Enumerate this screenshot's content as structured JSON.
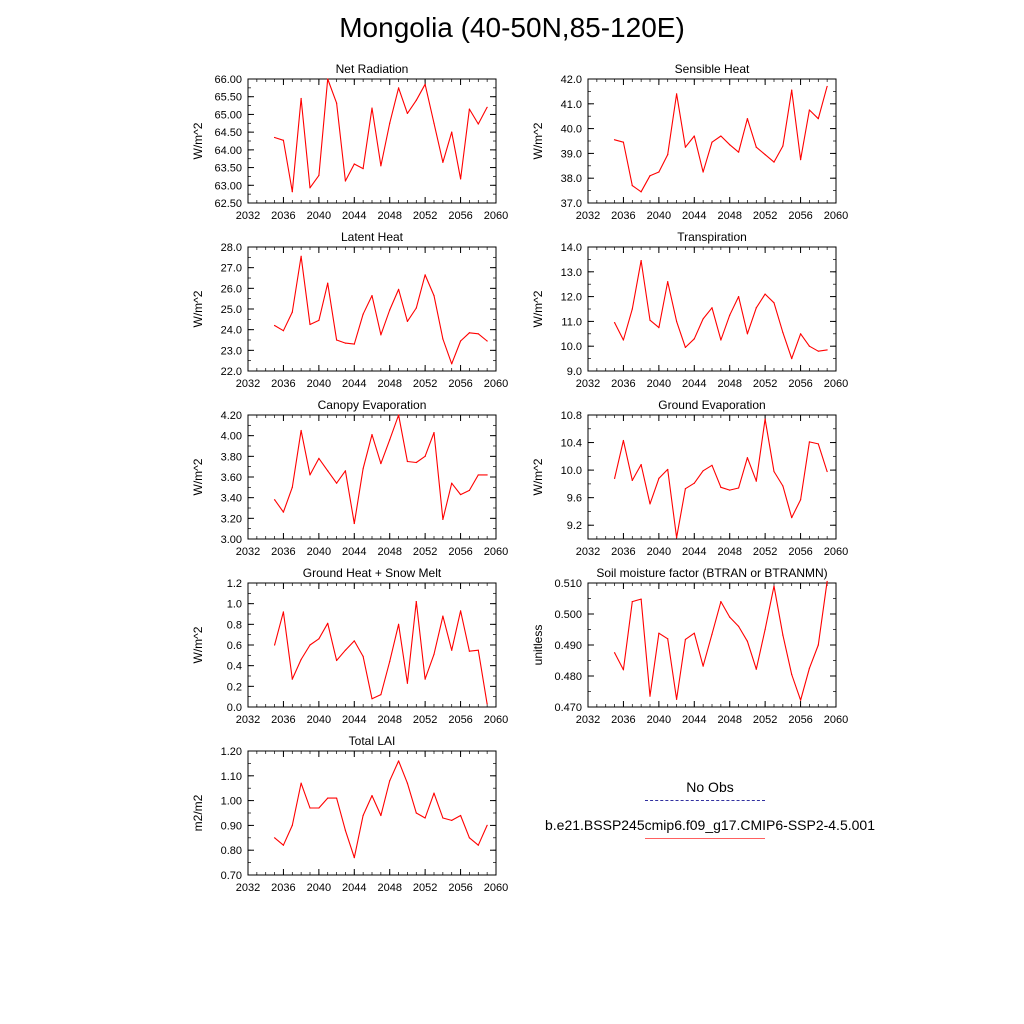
{
  "figure": {
    "title": "Mongolia (40-50N,85-120E)"
  },
  "legend": [
    {
      "label": "No Obs",
      "color": "#3030a0",
      "style": "dashed"
    },
    {
      "label": "b.e21.BSSP245cmip6.f09_g17.CMIP6-SSP2-4.5.001",
      "color": "#ff0000",
      "style": "solid"
    }
  ],
  "chart_data": [
    {
      "type": "line",
      "title": "Net Radiation",
      "ylabel": "W/m^2",
      "xlim": [
        2032,
        2060
      ],
      "ylim": [
        62.5,
        66.0
      ],
      "xticks": [
        2032,
        2036,
        2040,
        2044,
        2048,
        2052,
        2056,
        2060
      ],
      "yticks": [
        62.5,
        63.0,
        63.5,
        64.0,
        64.5,
        65.0,
        65.5,
        66.0
      ],
      "ytick_labels": [
        "62.50",
        "63.00",
        "63.50",
        "64.00",
        "64.50",
        "65.00",
        "65.50",
        "66.00"
      ],
      "grid": false,
      "color": "#ff0000",
      "x": [
        2035,
        2036,
        2037,
        2038,
        2039,
        2040,
        2041,
        2042,
        2043,
        2044,
        2045,
        2046,
        2047,
        2048,
        2049,
        2050,
        2051,
        2052,
        2053,
        2054,
        2055,
        2056,
        2057,
        2058,
        2059
      ],
      "values": [
        64.35,
        64.27,
        62.82,
        65.45,
        62.93,
        63.28,
        66.0,
        65.32,
        63.12,
        63.6,
        63.47,
        65.18,
        63.55,
        64.75,
        65.75,
        65.03,
        65.4,
        65.85,
        64.75,
        63.65,
        64.5,
        63.18,
        65.15,
        64.73,
        65.2
      ]
    },
    {
      "type": "line",
      "title": "Sensible Heat",
      "ylabel": "W/m^2",
      "xlim": [
        2032,
        2060
      ],
      "ylim": [
        37.0,
        42.0
      ],
      "xticks": [
        2032,
        2036,
        2040,
        2044,
        2048,
        2052,
        2056,
        2060
      ],
      "yticks": [
        37.0,
        38.0,
        39.0,
        40.0,
        41.0,
        42.0
      ],
      "ytick_labels": [
        "37.0",
        "38.0",
        "39.0",
        "40.0",
        "41.0",
        "42.0"
      ],
      "grid": false,
      "color": "#ff0000",
      "x": [
        2035,
        2036,
        2037,
        2038,
        2039,
        2040,
        2041,
        2042,
        2043,
        2044,
        2045,
        2046,
        2047,
        2048,
        2049,
        2050,
        2051,
        2052,
        2053,
        2054,
        2055,
        2056,
        2057,
        2058,
        2059
      ],
      "values": [
        39.55,
        39.45,
        37.7,
        37.45,
        38.1,
        38.25,
        38.95,
        41.4,
        39.25,
        39.7,
        38.25,
        39.45,
        39.7,
        39.35,
        39.05,
        40.4,
        39.25,
        38.95,
        38.65,
        39.3,
        41.55,
        38.75,
        40.75,
        40.4,
        41.7
      ]
    },
    {
      "type": "line",
      "title": "Latent Heat",
      "ylabel": "W/m^2",
      "xlim": [
        2032,
        2060
      ],
      "ylim": [
        22.0,
        28.0
      ],
      "xticks": [
        2032,
        2036,
        2040,
        2044,
        2048,
        2052,
        2056,
        2060
      ],
      "yticks": [
        22.0,
        23.0,
        24.0,
        25.0,
        26.0,
        27.0,
        28.0
      ],
      "ytick_labels": [
        "22.0",
        "23.0",
        "24.0",
        "25.0",
        "26.0",
        "27.0",
        "28.0"
      ],
      "grid": false,
      "color": "#ff0000",
      "x": [
        2035,
        2036,
        2037,
        2038,
        2039,
        2040,
        2041,
        2042,
        2043,
        2044,
        2045,
        2046,
        2047,
        2048,
        2049,
        2050,
        2051,
        2052,
        2053,
        2054,
        2055,
        2056,
        2057,
        2058,
        2059
      ],
      "values": [
        24.2,
        23.95,
        24.85,
        27.55,
        24.25,
        24.45,
        26.25,
        23.5,
        23.35,
        23.3,
        24.75,
        25.65,
        23.75,
        24.95,
        25.95,
        24.4,
        25.05,
        26.65,
        25.65,
        23.55,
        22.35,
        23.45,
        23.85,
        23.8,
        23.45
      ]
    },
    {
      "type": "line",
      "title": "Transpiration",
      "ylabel": "W/m^2",
      "xlim": [
        2032,
        2060
      ],
      "ylim": [
        9.0,
        14.0
      ],
      "xticks": [
        2032,
        2036,
        2040,
        2044,
        2048,
        2052,
        2056,
        2060
      ],
      "yticks": [
        9.0,
        10.0,
        11.0,
        12.0,
        13.0,
        14.0
      ],
      "ytick_labels": [
        "9.0",
        "10.0",
        "11.0",
        "12.0",
        "13.0",
        "14.0"
      ],
      "grid": false,
      "color": "#ff0000",
      "x": [
        2035,
        2036,
        2037,
        2038,
        2039,
        2040,
        2041,
        2042,
        2043,
        2044,
        2045,
        2046,
        2047,
        2048,
        2049,
        2050,
        2051,
        2052,
        2053,
        2054,
        2055,
        2056,
        2057,
        2058,
        2059
      ],
      "values": [
        10.95,
        10.25,
        11.5,
        13.45,
        11.05,
        10.75,
        12.6,
        11.0,
        9.95,
        10.3,
        11.1,
        11.55,
        10.25,
        11.25,
        12.0,
        10.5,
        11.55,
        12.1,
        11.75,
        10.55,
        9.5,
        10.5,
        10.0,
        9.8,
        9.85
      ]
    },
    {
      "type": "line",
      "title": "Canopy Evaporation",
      "ylabel": "W/m^2",
      "xlim": [
        2032,
        2060
      ],
      "ylim": [
        3.0,
        4.2
      ],
      "xticks": [
        2032,
        2036,
        2040,
        2044,
        2048,
        2052,
        2056,
        2060
      ],
      "yticks": [
        3.0,
        3.2,
        3.4,
        3.6,
        3.8,
        4.0,
        4.2
      ],
      "ytick_labels": [
        "3.00",
        "3.20",
        "3.40",
        "3.60",
        "3.80",
        "4.00",
        "4.20"
      ],
      "grid": false,
      "color": "#ff0000",
      "x": [
        2035,
        2036,
        2037,
        2038,
        2039,
        2040,
        2041,
        2042,
        2043,
        2044,
        2045,
        2046,
        2047,
        2048,
        2049,
        2050,
        2051,
        2052,
        2053,
        2054,
        2055,
        2056,
        2057,
        2058,
        2059
      ],
      "values": [
        3.38,
        3.26,
        3.5,
        4.05,
        3.62,
        3.78,
        3.66,
        3.54,
        3.66,
        3.15,
        3.68,
        4.01,
        3.73,
        3.96,
        4.2,
        3.75,
        3.74,
        3.8,
        4.03,
        3.19,
        3.54,
        3.43,
        3.47,
        3.62,
        3.62
      ]
    },
    {
      "type": "line",
      "title": "Ground Evaporation",
      "ylabel": "W/m^2",
      "xlim": [
        2032,
        2060
      ],
      "ylim": [
        9.0,
        10.8
      ],
      "xticks": [
        2032,
        2036,
        2040,
        2044,
        2048,
        2052,
        2056,
        2060
      ],
      "yticks": [
        9.2,
        9.6,
        10.0,
        10.4,
        10.8
      ],
      "ytick_labels": [
        "9.2",
        "9.6",
        "10.0",
        "10.4",
        "10.8"
      ],
      "grid": false,
      "color": "#ff0000",
      "x": [
        2035,
        2036,
        2037,
        2038,
        2039,
        2040,
        2041,
        2042,
        2043,
        2044,
        2045,
        2046,
        2047,
        2048,
        2049,
        2050,
        2051,
        2052,
        2053,
        2054,
        2055,
        2056,
        2057,
        2058,
        2059
      ],
      "values": [
        9.88,
        10.43,
        9.85,
        10.08,
        9.51,
        9.88,
        10.01,
        9.02,
        9.73,
        9.81,
        9.99,
        10.07,
        9.75,
        9.71,
        9.74,
        10.18,
        9.84,
        10.74,
        9.98,
        9.77,
        9.31,
        9.57,
        10.41,
        10.38,
        9.98
      ]
    },
    {
      "type": "line",
      "title": "Ground Heat + Snow Melt",
      "ylabel": "W/m^2",
      "xlim": [
        2032,
        2060
      ],
      "ylim": [
        0.0,
        1.2
      ],
      "xticks": [
        2032,
        2036,
        2040,
        2044,
        2048,
        2052,
        2056,
        2060
      ],
      "yticks": [
        0.0,
        0.2,
        0.4,
        0.6,
        0.8,
        1.0,
        1.2
      ],
      "ytick_labels": [
        "0.0",
        "0.2",
        "0.4",
        "0.6",
        "0.8",
        "1.0",
        "1.2"
      ],
      "grid": false,
      "color": "#ff0000",
      "x": [
        2035,
        2036,
        2037,
        2038,
        2039,
        2040,
        2041,
        2042,
        2043,
        2044,
        2045,
        2046,
        2047,
        2048,
        2049,
        2050,
        2051,
        2052,
        2053,
        2054,
        2055,
        2056,
        2057,
        2058,
        2059
      ],
      "values": [
        0.6,
        0.92,
        0.27,
        0.46,
        0.6,
        0.66,
        0.81,
        0.45,
        0.55,
        0.64,
        0.49,
        0.08,
        0.12,
        0.44,
        0.8,
        0.23,
        1.02,
        0.27,
        0.51,
        0.88,
        0.55,
        0.93,
        0.54,
        0.55,
        0.03
      ]
    },
    {
      "type": "line",
      "title": "Soil moisture factor (BTRAN or BTRANMN)",
      "ylabel": "unitless",
      "xlim": [
        2032,
        2060
      ],
      "ylim": [
        0.47,
        0.51
      ],
      "xticks": [
        2032,
        2036,
        2040,
        2044,
        2048,
        2052,
        2056,
        2060
      ],
      "yticks": [
        0.47,
        0.48,
        0.49,
        0.5,
        0.51
      ],
      "ytick_labels": [
        "0.470",
        "0.480",
        "0.490",
        "0.500",
        "0.510"
      ],
      "grid": false,
      "color": "#ff0000",
      "x": [
        2035,
        2036,
        2037,
        2038,
        2039,
        2040,
        2041,
        2042,
        2043,
        2044,
        2045,
        2046,
        2047,
        2048,
        2049,
        2050,
        2051,
        2052,
        2053,
        2054,
        2055,
        2056,
        2057,
        2058,
        2059
      ],
      "values": [
        0.4875,
        0.482,
        0.504,
        0.5048,
        0.4735,
        0.4938,
        0.492,
        0.4725,
        0.4918,
        0.4938,
        0.4832,
        0.4935,
        0.504,
        0.499,
        0.496,
        0.4912,
        0.4822,
        0.495,
        0.509,
        0.4932,
        0.4805,
        0.4722,
        0.4825,
        0.49,
        0.5105
      ]
    },
    {
      "type": "line",
      "title": "Total LAI",
      "ylabel": "m2/m2",
      "xlim": [
        2032,
        2060
      ],
      "ylim": [
        0.7,
        1.2
      ],
      "xticks": [
        2032,
        2036,
        2040,
        2044,
        2048,
        2052,
        2056,
        2060
      ],
      "yticks": [
        0.7,
        0.8,
        0.9,
        1.0,
        1.1,
        1.2
      ],
      "ytick_labels": [
        "0.70",
        "0.80",
        "0.90",
        "1.00",
        "1.10",
        "1.20"
      ],
      "grid": false,
      "color": "#ff0000",
      "x": [
        2035,
        2036,
        2037,
        2038,
        2039,
        2040,
        2041,
        2042,
        2043,
        2044,
        2045,
        2046,
        2047,
        2048,
        2049,
        2050,
        2051,
        2052,
        2053,
        2054,
        2055,
        2056,
        2057,
        2058,
        2059
      ],
      "values": [
        0.85,
        0.82,
        0.9,
        1.07,
        0.97,
        0.97,
        1.01,
        1.01,
        0.88,
        0.77,
        0.94,
        1.02,
        0.94,
        1.08,
        1.16,
        1.07,
        0.95,
        0.93,
        1.03,
        0.93,
        0.92,
        0.94,
        0.85,
        0.82,
        0.9
      ]
    }
  ]
}
